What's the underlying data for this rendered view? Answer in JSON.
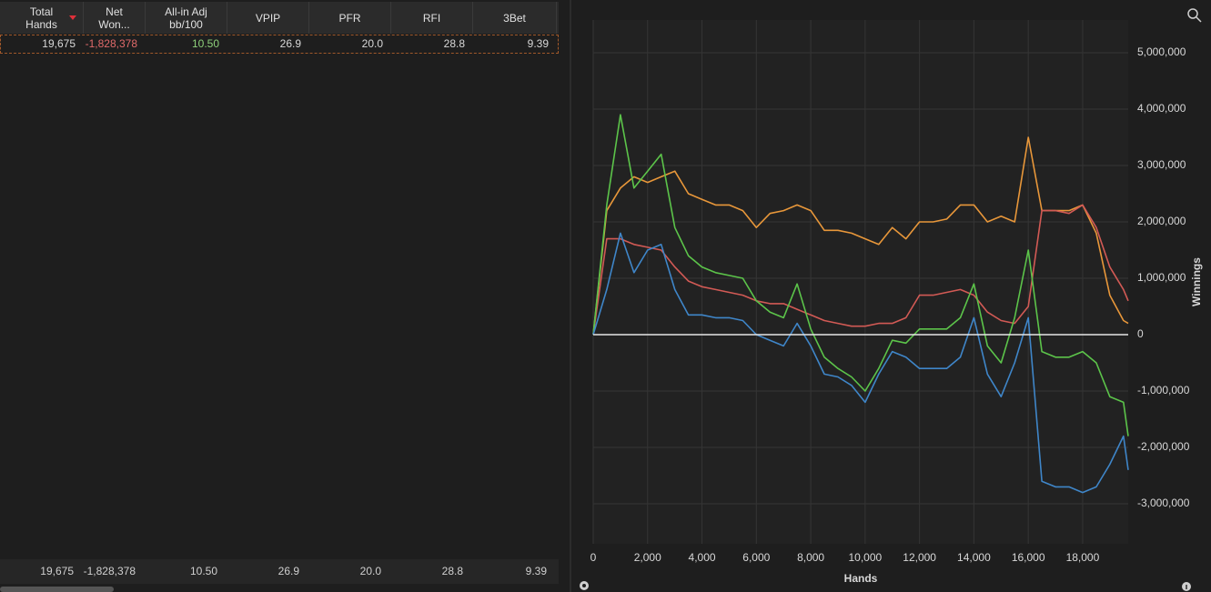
{
  "table": {
    "columns": [
      [
        "Total",
        "Hands"
      ],
      [
        "Net",
        "Won..."
      ],
      [
        "All-in Adj",
        "bb/100"
      ],
      [
        "VPIP"
      ],
      [
        "PFR"
      ],
      [
        "RFI"
      ],
      [
        "3Bet"
      ]
    ],
    "rows": [
      [
        "19,675",
        "-1,828,378",
        "10.50",
        "26.9",
        "20.0",
        "28.8",
        "9.39"
      ]
    ],
    "totals": [
      "19,675",
      "-1,828,378",
      "10.50",
      "26.9",
      "20.0",
      "28.8",
      "9.39"
    ]
  },
  "chart_data": {
    "type": "line",
    "x_label": "Hands",
    "y_label": "Winnings",
    "x": [
      0,
      500,
      1000,
      1500,
      2000,
      2500,
      3000,
      3500,
      4000,
      4500,
      5000,
      5500,
      6000,
      6500,
      7000,
      7500,
      8000,
      8500,
      9000,
      9500,
      10000,
      10500,
      11000,
      11500,
      12000,
      12500,
      13000,
      13500,
      14000,
      14500,
      15000,
      15500,
      16000,
      16500,
      17000,
      17500,
      18000,
      18500,
      19000,
      19500,
      19675
    ],
    "series": [
      {
        "color": "#e8973a",
        "values": [
          0,
          2200000,
          2600000,
          2800000,
          2700000,
          2800000,
          2900000,
          2500000,
          2400000,
          2300000,
          2300000,
          2200000,
          1900000,
          2150000,
          2200000,
          2300000,
          2200000,
          1850000,
          1850000,
          1800000,
          1700000,
          1600000,
          1900000,
          1700000,
          2000000,
          2000000,
          2050000,
          2300000,
          2300000,
          2000000,
          2100000,
          2000000,
          3500000,
          2200000,
          2200000,
          2200000,
          2300000,
          1800000,
          700000,
          250000,
          200000
        ]
      },
      {
        "color": "#d25a55",
        "values": [
          0,
          1700000,
          1700000,
          1600000,
          1550000,
          1500000,
          1200000,
          950000,
          850000,
          800000,
          750000,
          700000,
          600000,
          550000,
          550000,
          450000,
          350000,
          250000,
          200000,
          150000,
          150000,
          200000,
          200000,
          300000,
          700000,
          700000,
          750000,
          800000,
          700000,
          400000,
          250000,
          200000,
          500000,
          2200000,
          2200000,
          2150000,
          2300000,
          1900000,
          1200000,
          800000,
          600000
        ]
      },
      {
        "color": "#5cc44a",
        "values": [
          0,
          2300000,
          3900000,
          2600000,
          2900000,
          3200000,
          1900000,
          1400000,
          1200000,
          1100000,
          1050000,
          1000000,
          600000,
          400000,
          300000,
          900000,
          100000,
          -400000,
          -600000,
          -750000,
          -1000000,
          -600000,
          -100000,
          -150000,
          100000,
          100000,
          100000,
          300000,
          900000,
          -200000,
          -500000,
          300000,
          1500000,
          -300000,
          -400000,
          -400000,
          -300000,
          -500000,
          -1100000,
          -1200000,
          -1800000
        ]
      },
      {
        "color": "#3f86c9",
        "values": [
          0,
          800000,
          1800000,
          1100000,
          1500000,
          1600000,
          800000,
          350000,
          350000,
          300000,
          300000,
          250000,
          0,
          -100000,
          -200000,
          200000,
          -200000,
          -700000,
          -750000,
          -900000,
          -1200000,
          -700000,
          -300000,
          -400000,
          -600000,
          -600000,
          -600000,
          -400000,
          300000,
          -700000,
          -1100000,
          -500000,
          300000,
          -2600000,
          -2700000,
          -2700000,
          -2800000,
          -2700000,
          -2300000,
          -1800000,
          -2400000
        ]
      }
    ],
    "xlim": [
      0,
      19675
    ],
    "ylim": [
      -3710000,
      5580000
    ],
    "xticks": [
      0,
      {
        "value": 2000,
        "label": "2,000"
      },
      {
        "value": 4000,
        "label": "4,000"
      },
      {
        "value": 6000,
        "label": "6,000"
      },
      {
        "value": 8000,
        "label": "8,000"
      },
      {
        "value": 10000,
        "label": "10,000"
      },
      {
        "value": 12000,
        "label": "12,000"
      },
      {
        "value": 14000,
        "label": "14,000"
      },
      {
        "value": 16000,
        "label": "16,000"
      },
      {
        "value": 18000,
        "label": "18,000"
      }
    ],
    "yticks": [
      {
        "value": -3000000,
        "label": "-3,000,000"
      },
      {
        "value": -2000000,
        "label": "-2,000,000"
      },
      {
        "value": -1000000,
        "label": "-1,000,000"
      },
      0,
      {
        "value": 1000000,
        "label": "1,000,000"
      },
      {
        "value": 2000000,
        "label": "2,000,000"
      },
      {
        "value": 3000000,
        "label": "3,000,000"
      },
      {
        "value": 4000000,
        "label": "4,000,000"
      },
      {
        "value": 5000000,
        "label": "5,000,000"
      }
    ],
    "grid": true
  }
}
